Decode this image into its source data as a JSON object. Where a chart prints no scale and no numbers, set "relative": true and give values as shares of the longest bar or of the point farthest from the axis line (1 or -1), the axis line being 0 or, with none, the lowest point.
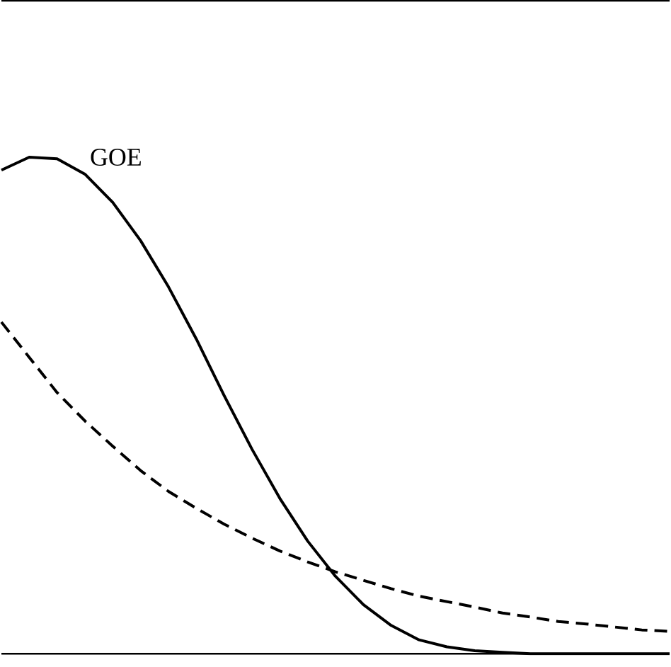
{
  "chart_data": {
    "type": "line",
    "relative": true,
    "marker": "none",
    "categories": [
      null,
      null,
      null,
      null,
      null,
      null,
      null,
      null,
      null,
      null,
      null,
      null,
      null,
      null,
      null,
      null,
      null,
      null,
      null,
      null,
      null,
      null,
      null,
      null,
      null
    ],
    "series": [
      {
        "name": "GOE",
        "color": "#000000",
        "line_style": "solid",
        "values": [
          0.974,
          1,
          0.997,
          0.966,
          0.909,
          0.832,
          0.739,
          0.634,
          0.52,
          0.412,
          0.313,
          0.227,
          0.156,
          0.099,
          0.057,
          0.028,
          0.014,
          0.006,
          0.003,
          0,
          0,
          0,
          0,
          0,
          0
        ]
      },
      {
        "color": "#000000",
        "line_style": "dashed",
        "values": [
          0.668,
          0.597,
          0.526,
          0.469,
          0.418,
          0.369,
          0.327,
          0.293,
          0.261,
          0.233,
          0.207,
          0.185,
          0.165,
          0.148,
          0.131,
          0.116,
          0.105,
          0.094,
          0.082,
          0.074,
          0.065,
          0.06,
          0.054,
          0.048,
          0.045
        ]
      }
    ]
  }
}
